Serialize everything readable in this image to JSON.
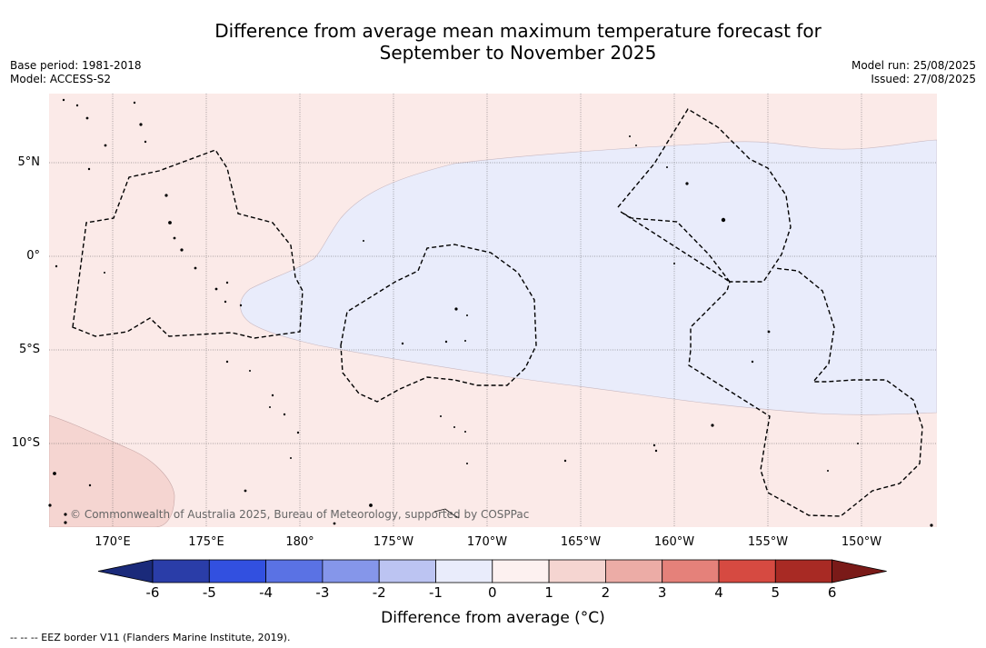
{
  "title_line1": "Difference from average mean maximum temperature forecast for",
  "title_line2": "September to November 2025",
  "base_period": "Base period: 1981-2018",
  "model": "Model: ACCESS-S2",
  "model_run": "Model run: 25/08/2025",
  "issued": "Issued: 27/08/2025",
  "lat_labels": [
    "5°N",
    "0°",
    "5°S",
    "10°S"
  ],
  "lon_labels": [
    "170°E",
    "175°E",
    "180°",
    "175°W",
    "170°W",
    "165°W",
    "160°W",
    "155°W",
    "150°W"
  ],
  "copyright": "© Commonwealth of Australia 2025, Bureau of Meteorology, supported by COSPPac",
  "colorbar": {
    "ticks": [
      "-6",
      "-5",
      "-4",
      "-3",
      "-2",
      "-1",
      "0",
      "1",
      "2",
      "3",
      "4",
      "5",
      "6"
    ],
    "colors": [
      "#2a3da8",
      "#3250e0",
      "#5a72e4",
      "#8596ea",
      "#bcc4f2",
      "#e9ecfb",
      "#fdf1f0",
      "#f5d5d1",
      "#ecaca6",
      "#e5817a",
      "#d64a41",
      "#a82a24"
    ],
    "under_color": "#1a2a7a",
    "over_color": "#7a1a18",
    "label": "Difference from average (°C)"
  },
  "map_colors": {
    "warm_light": "#fbeae8",
    "cool_light": "#e9ecfb",
    "warm_medium": "#f5d5d1",
    "gridline": "#555555",
    "eez_line": "#000000"
  },
  "eez_note": "-- -- -- EEZ border V11 (Flanders Marine Institute, 2019)."
}
